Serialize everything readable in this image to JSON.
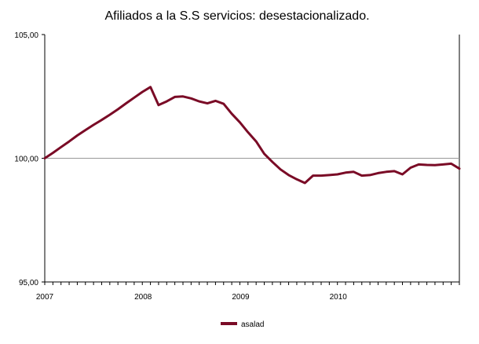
{
  "chart_data": {
    "type": "line",
    "title": "Afiliados a la S.S servicios: desestacionalizado.",
    "xlabel": "",
    "ylabel": "",
    "ylim": [
      95,
      105
    ],
    "y_ticks": [
      {
        "value": 105,
        "label": "105,00"
      },
      {
        "value": 100,
        "label": "100,00"
      },
      {
        "value": 95,
        "label": "95,00"
      }
    ],
    "reference_line": 100,
    "x_labels": [
      "2007",
      "2008",
      "2009",
      "2010"
    ],
    "months_per_year": 12,
    "grid": false,
    "legend_position": "bottom",
    "series": [
      {
        "name": "asalad",
        "color": "#7a0b26",
        "values": [
          100.0,
          100.22,
          100.45,
          100.68,
          100.92,
          101.14,
          101.35,
          101.55,
          101.76,
          101.98,
          102.22,
          102.45,
          102.68,
          102.88,
          102.15,
          102.3,
          102.48,
          102.5,
          102.42,
          102.3,
          102.22,
          102.32,
          102.2,
          101.8,
          101.45,
          101.05,
          100.68,
          100.18,
          99.85,
          99.55,
          99.32,
          99.15,
          99.0,
          99.3,
          99.3,
          99.32,
          99.35,
          99.42,
          99.45,
          99.3,
          99.32,
          99.4,
          99.45,
          99.48,
          99.35,
          99.62,
          99.75,
          99.73,
          99.72,
          99.75,
          99.78,
          99.58
        ]
      }
    ]
  }
}
